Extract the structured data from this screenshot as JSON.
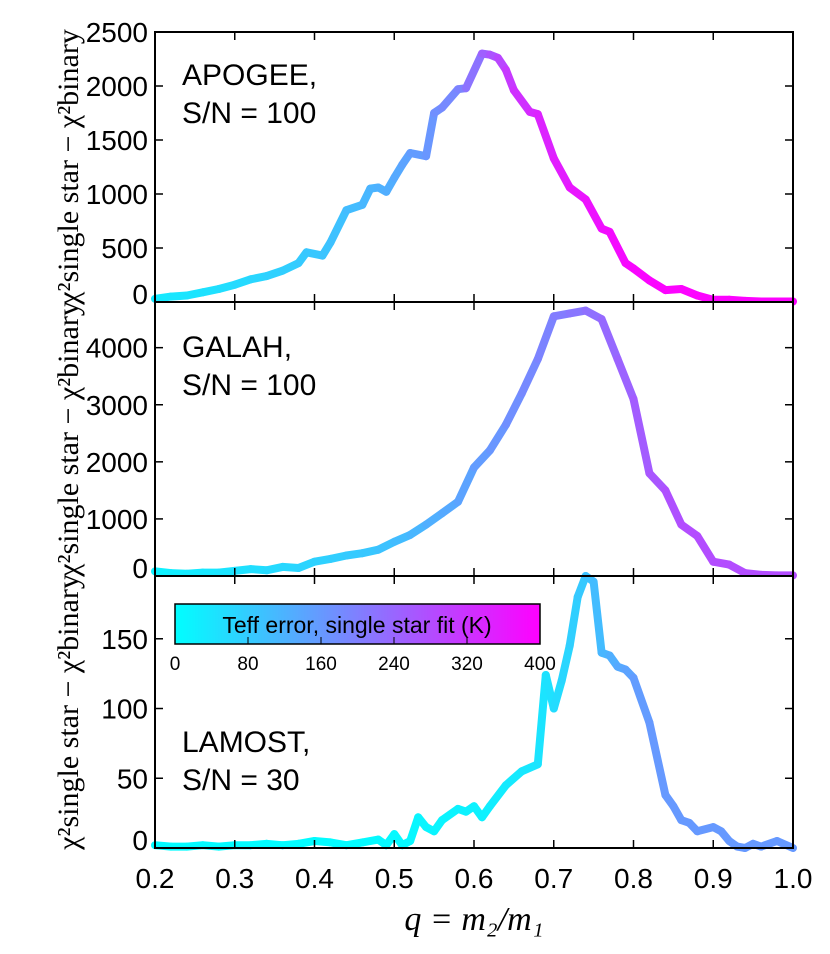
{
  "chart_data": {
    "type": "line",
    "xlabel": "q = m₂/m₁",
    "ylabel": "χ²single star − χ²binary",
    "xlim": [
      0.2,
      1.0
    ],
    "xticks": [
      "0.2",
      "0.3",
      "0.4",
      "0.5",
      "0.6",
      "0.7",
      "0.8",
      "0.9",
      "1.0"
    ],
    "colorbar": {
      "title": "Teff error, single star fit (K)",
      "range": [
        0,
        400
      ],
      "ticks": [
        "0",
        "80",
        "160",
        "240",
        "320",
        "400"
      ],
      "colors": [
        "#00ffff",
        "#ff00ff"
      ]
    },
    "panels": [
      {
        "label_line1": "APOGEE,",
        "label_line2": "S/N = 100",
        "ylim": [
          0,
          2500
        ],
        "yticks": [
          "0",
          "500",
          "1000",
          "1500",
          "2000",
          "2500"
        ],
        "x": [
          0.2,
          0.22,
          0.24,
          0.26,
          0.28,
          0.3,
          0.32,
          0.34,
          0.36,
          0.38,
          0.39,
          0.41,
          0.42,
          0.44,
          0.46,
          0.47,
          0.48,
          0.49,
          0.5,
          0.51,
          0.52,
          0.54,
          0.55,
          0.56,
          0.58,
          0.59,
          0.61,
          0.62,
          0.63,
          0.64,
          0.65,
          0.67,
          0.68,
          0.7,
          0.72,
          0.74,
          0.76,
          0.77,
          0.79,
          0.8,
          0.82,
          0.84,
          0.86,
          0.88,
          0.9,
          0.92,
          0.94,
          0.96,
          0.98,
          1.0
        ],
        "y": [
          30,
          50,
          60,
          90,
          120,
          160,
          210,
          240,
          290,
          360,
          460,
          430,
          550,
          850,
          900,
          1050,
          1060,
          1020,
          1150,
          1270,
          1380,
          1350,
          1750,
          1800,
          1970,
          1980,
          2300,
          2290,
          2260,
          2150,
          1960,
          1760,
          1740,
          1330,
          1060,
          950,
          680,
          650,
          360,
          310,
          200,
          110,
          120,
          60,
          20,
          20,
          10,
          5,
          5,
          5
        ],
        "teff": [
          30,
          40,
          40,
          45,
          50,
          55,
          60,
          70,
          75,
          80,
          85,
          90,
          95,
          100,
          110,
          115,
          120,
          125,
          130,
          140,
          150,
          160,
          170,
          180,
          190,
          200,
          240,
          260,
          280,
          300,
          320,
          330,
          340,
          350,
          360,
          370,
          375,
          380,
          385,
          390,
          392,
          395,
          395,
          395,
          395,
          395,
          395,
          395,
          395,
          395
        ]
      },
      {
        "label_line1": "GALAH,",
        "label_line2": "S/N = 100",
        "ylim": [
          0,
          4800
        ],
        "yticks": [
          "0",
          "1000",
          "2000",
          "3000",
          "4000"
        ],
        "x": [
          0.2,
          0.22,
          0.24,
          0.26,
          0.28,
          0.3,
          0.32,
          0.34,
          0.36,
          0.38,
          0.4,
          0.42,
          0.44,
          0.46,
          0.48,
          0.5,
          0.52,
          0.54,
          0.56,
          0.58,
          0.6,
          0.62,
          0.64,
          0.66,
          0.68,
          0.7,
          0.72,
          0.74,
          0.76,
          0.78,
          0.8,
          0.82,
          0.84,
          0.86,
          0.88,
          0.9,
          0.92,
          0.94,
          0.96,
          0.98,
          1.0
        ],
        "y": [
          80,
          50,
          40,
          60,
          60,
          90,
          120,
          100,
          160,
          140,
          250,
          300,
          360,
          400,
          460,
          600,
          720,
          900,
          1100,
          1300,
          1900,
          2200,
          2650,
          3200,
          3800,
          4550,
          4600,
          4650,
          4500,
          3800,
          3100,
          1800,
          1500,
          900,
          700,
          250,
          200,
          50,
          20,
          10,
          10
        ],
        "teff": [
          20,
          25,
          30,
          35,
          40,
          45,
          50,
          55,
          60,
          65,
          70,
          75,
          80,
          85,
          90,
          100,
          110,
          120,
          130,
          140,
          150,
          160,
          170,
          180,
          190,
          200,
          210,
          220,
          230,
          240,
          250,
          260,
          270,
          280,
          280,
          280,
          280,
          280,
          280,
          280,
          280
        ]
      },
      {
        "label_line1": "LAMOST,",
        "label_line2": "S/N = 30",
        "ylim": [
          0,
          195
        ],
        "yticks": [
          "0",
          "50",
          "100",
          "150"
        ],
        "x": [
          0.2,
          0.22,
          0.24,
          0.26,
          0.28,
          0.3,
          0.32,
          0.34,
          0.36,
          0.38,
          0.4,
          0.42,
          0.44,
          0.46,
          0.48,
          0.49,
          0.5,
          0.51,
          0.52,
          0.53,
          0.54,
          0.55,
          0.56,
          0.58,
          0.59,
          0.6,
          0.61,
          0.62,
          0.64,
          0.66,
          0.68,
          0.69,
          0.7,
          0.71,
          0.72,
          0.73,
          0.74,
          0.75,
          0.76,
          0.77,
          0.78,
          0.79,
          0.8,
          0.82,
          0.84,
          0.85,
          0.86,
          0.87,
          0.88,
          0.9,
          0.91,
          0.92,
          0.93,
          0.94,
          0.95,
          0.96,
          0.98,
          1.0
        ],
        "y": [
          2,
          1,
          1,
          2,
          1,
          2,
          2,
          3,
          2,
          3,
          5,
          4,
          2,
          4,
          6,
          2,
          10,
          2,
          5,
          22,
          15,
          12,
          20,
          28,
          26,
          30,
          22,
          30,
          45,
          55,
          60,
          124,
          100,
          120,
          145,
          180,
          195,
          191,
          140,
          138,
          130,
          128,
          122,
          90,
          38,
          30,
          20,
          18,
          12,
          15,
          12,
          5,
          1,
          0,
          3,
          1,
          5,
          0
        ],
        "teff": [
          5,
          5,
          5,
          5,
          5,
          5,
          5,
          5,
          5,
          5,
          5,
          5,
          5,
          5,
          10,
          10,
          10,
          10,
          10,
          15,
          15,
          15,
          15,
          20,
          20,
          20,
          20,
          25,
          30,
          35,
          40,
          45,
          50,
          60,
          70,
          80,
          90,
          100,
          110,
          120,
          130,
          140,
          150,
          160,
          160,
          160,
          160,
          160,
          160,
          160,
          160,
          160,
          160,
          160,
          160,
          160,
          160,
          160
        ]
      }
    ]
  }
}
